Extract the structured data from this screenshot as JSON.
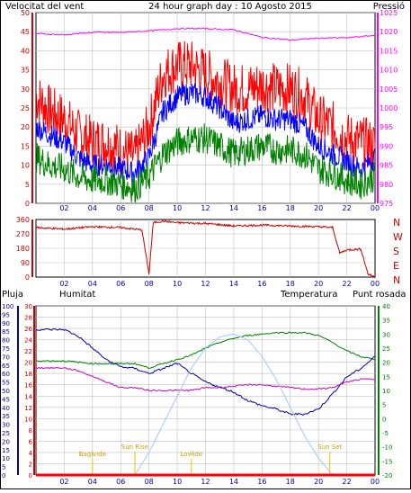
{
  "title": "24 hour graph day : 10 Agosto 2015",
  "colors": {
    "wind_speed": "#ff0000",
    "wind_avg": "#0000ff",
    "wind_gust_low": "#008000",
    "pressure": "#ff00ff",
    "wind_dir": "#cc0000",
    "rain": "#ff0000",
    "humidity": "#0000aa",
    "temperature": "#008000",
    "dewpoint": "#cc00cc",
    "solar": "#a0c8ff",
    "events": "#e8c000",
    "grid": "#c0c0c0",
    "border": "#000000"
  },
  "chart_data": [
    {
      "type": "line",
      "panel": "wind",
      "title": "24 hour graph day : 10 Agosto 2015",
      "left_label": "Velocitat del vent",
      "right_label": "Pressió",
      "x_ticks": [
        "02",
        "04",
        "06",
        "08",
        "10",
        "12",
        "14",
        "16",
        "18",
        "20",
        "22",
        "00"
      ],
      "ylim_left": [
        0,
        50
      ],
      "yticks_left": [
        "0",
        "5",
        "10",
        "15",
        "20",
        "25",
        "30",
        "35",
        "40",
        "45",
        "50"
      ],
      "ylim_right": [
        975,
        1025
      ],
      "yticks_right": [
        "975",
        "980",
        "985",
        "990",
        "995",
        "1000",
        "1005",
        "1010",
        "1015",
        "1020",
        "1025"
      ],
      "grid": true,
      "series": [
        {
          "key": "gust",
          "color_key": "wind_speed",
          "x": [
            0,
            1,
            2,
            3,
            4,
            5,
            6,
            7,
            8,
            9,
            10,
            11,
            12,
            13,
            14,
            15,
            16,
            17,
            18,
            19,
            20,
            21,
            22,
            23,
            24
          ],
          "values": [
            28,
            24,
            22,
            18,
            16,
            16,
            14,
            12,
            20,
            34,
            36,
            36,
            34,
            32,
            30,
            30,
            31,
            30,
            30,
            28,
            22,
            20,
            17,
            16,
            15
          ]
        },
        {
          "key": "avg",
          "color_key": "wind_avg",
          "x": [
            0,
            1,
            2,
            3,
            4,
            5,
            6,
            7,
            8,
            9,
            10,
            11,
            12,
            13,
            14,
            15,
            16,
            17,
            18,
            19,
            20,
            21,
            22,
            23,
            24
          ],
          "values": [
            20,
            18,
            16,
            12,
            10,
            10,
            9,
            8,
            12,
            24,
            28,
            29,
            28,
            25,
            21,
            22,
            23,
            22,
            22,
            20,
            15,
            13,
            11,
            9,
            12
          ]
        },
        {
          "key": "low",
          "color_key": "wind_gust_low",
          "x": [
            0,
            1,
            2,
            3,
            4,
            5,
            6,
            7,
            8,
            9,
            10,
            11,
            12,
            13,
            14,
            15,
            16,
            17,
            18,
            19,
            20,
            21,
            22,
            23,
            24
          ],
          "values": [
            12,
            10,
            9,
            7,
            6,
            6,
            5,
            4,
            7,
            13,
            16,
            17,
            17,
            15,
            13,
            14,
            15,
            14,
            14,
            13,
            9,
            8,
            6,
            5,
            7
          ]
        },
        {
          "key": "pressure",
          "color_key": "pressure",
          "axis": "right",
          "x": [
            0,
            2,
            4,
            6,
            8,
            10,
            12,
            14,
            16,
            18,
            20,
            22,
            24
          ],
          "values": [
            1019.5,
            1019.2,
            1019.8,
            1019.8,
            1020.2,
            1020.8,
            1020.8,
            1020.5,
            1018.5,
            1017.8,
            1018.3,
            1018.4,
            1019.0
          ]
        }
      ]
    },
    {
      "type": "line",
      "panel": "wind_direction",
      "x_ticks": [
        "02",
        "04",
        "06",
        "08",
        "10",
        "12",
        "14",
        "16",
        "18",
        "20",
        "22",
        "00"
      ],
      "ylim": [
        0,
        360
      ],
      "yticks": [
        "0",
        "90",
        "180",
        "270",
        "360"
      ],
      "direction_labels": [
        "N",
        "W",
        "S",
        "E",
        "N"
      ],
      "series": [
        {
          "key": "dir",
          "color_key": "wind_dir",
          "x": [
            0,
            2,
            4,
            6,
            7.5,
            8,
            8.3,
            9,
            10,
            12,
            14,
            16,
            18,
            20,
            21,
            21.5,
            22,
            23,
            23.5,
            24
          ],
          "values": [
            310,
            300,
            315,
            310,
            295,
            20,
            340,
            350,
            340,
            335,
            320,
            325,
            320,
            315,
            310,
            150,
            170,
            175,
            20,
            0
          ]
        }
      ]
    },
    {
      "type": "line",
      "panel": "weather",
      "labels": {
        "rain": "Pluja",
        "humidity": "Humitat",
        "temperature": "Temperatura",
        "dewpoint": "Punt rosada"
      },
      "x_ticks": [
        "02",
        "04",
        "06",
        "08",
        "10",
        "12",
        "14",
        "16",
        "18",
        "20",
        "22",
        "00"
      ],
      "ylim_humidity": [
        0,
        100
      ],
      "yticks_humidity": [
        "0",
        "5",
        "10",
        "15",
        "20",
        "25",
        "30",
        "35",
        "40",
        "45",
        "50",
        "55",
        "60",
        "65",
        "70",
        "75",
        "80",
        "85",
        "90",
        "95",
        "100"
      ],
      "ylim_rain": [
        0,
        30
      ],
      "yticks_rain": [
        "0",
        "2",
        "4",
        "6",
        "8",
        "10",
        "12",
        "14",
        "16",
        "18",
        "20",
        "22",
        "24",
        "26",
        "28",
        "30"
      ],
      "ylim_temp": [
        -20,
        40
      ],
      "yticks_temp": [
        "-20",
        "-15",
        "-10",
        "-5",
        "0",
        "5",
        "10",
        "15",
        "20",
        "25",
        "30",
        "35",
        "40"
      ],
      "events": [
        {
          "label": "Baglvide",
          "x": 4
        },
        {
          "label": "Sun Rise",
          "x": 7
        },
        {
          "label": "Lovlide",
          "x": 11
        },
        {
          "label": "Sun Set",
          "x": 20.8
        }
      ],
      "series": [
        {
          "key": "humidity",
          "color_key": "humidity",
          "axis": "humidity",
          "x": [
            0,
            1,
            2,
            2.5,
            3,
            4,
            5,
            6,
            7,
            8,
            9,
            10,
            11,
            12,
            13,
            14,
            15,
            16,
            17,
            18,
            19,
            20,
            21,
            22,
            23,
            24
          ],
          "values": [
            86,
            86,
            86,
            84,
            82,
            75,
            68,
            64,
            63,
            60,
            63,
            66,
            60,
            55,
            52,
            49,
            44,
            41,
            39,
            36,
            36,
            39,
            48,
            58,
            63,
            70
          ]
        },
        {
          "key": "temperature",
          "color_key": "temperature",
          "axis": "temp",
          "x": [
            0,
            1,
            2,
            3,
            4,
            5,
            6,
            7,
            8,
            9,
            10,
            11,
            12,
            13,
            14,
            15,
            16,
            17,
            18,
            19,
            20,
            21,
            22,
            23,
            24
          ],
          "values": [
            20.5,
            20.5,
            20.5,
            20,
            19.5,
            19.5,
            19.5,
            19.5,
            18,
            19.5,
            21,
            22.5,
            25,
            27,
            28.5,
            29.5,
            30,
            30.5,
            30.5,
            30.5,
            29.5,
            27,
            24,
            22,
            21
          ]
        },
        {
          "key": "dewpoint",
          "color_key": "dewpoint",
          "axis": "temp",
          "x": [
            0,
            1,
            2,
            3,
            4,
            5,
            6,
            7,
            8,
            9,
            10,
            11,
            12,
            13,
            14,
            15,
            16,
            17,
            18,
            19,
            20,
            21,
            22,
            23,
            24
          ],
          "values": [
            18,
            18,
            18,
            17,
            15,
            13,
            11,
            11,
            10,
            10,
            10,
            10,
            11,
            11,
            11.5,
            12,
            12,
            11.5,
            11,
            10.5,
            10.5,
            11,
            13,
            14,
            14
          ]
        },
        {
          "key": "solar",
          "color_key": "solar",
          "axis": "temp",
          "x": [
            7,
            8,
            9,
            10,
            11,
            12,
            13,
            14,
            15,
            16,
            17,
            18,
            19,
            20,
            21
          ],
          "values": [
            -20,
            -12,
            -2,
            8,
            18,
            25,
            29,
            30,
            28,
            22,
            14,
            4,
            -6,
            -14,
            -20
          ]
        },
        {
          "key": "rain",
          "color_key": "rain",
          "axis": "rain",
          "x": [
            0,
            24
          ],
          "values": [
            0,
            0
          ]
        }
      ]
    }
  ]
}
